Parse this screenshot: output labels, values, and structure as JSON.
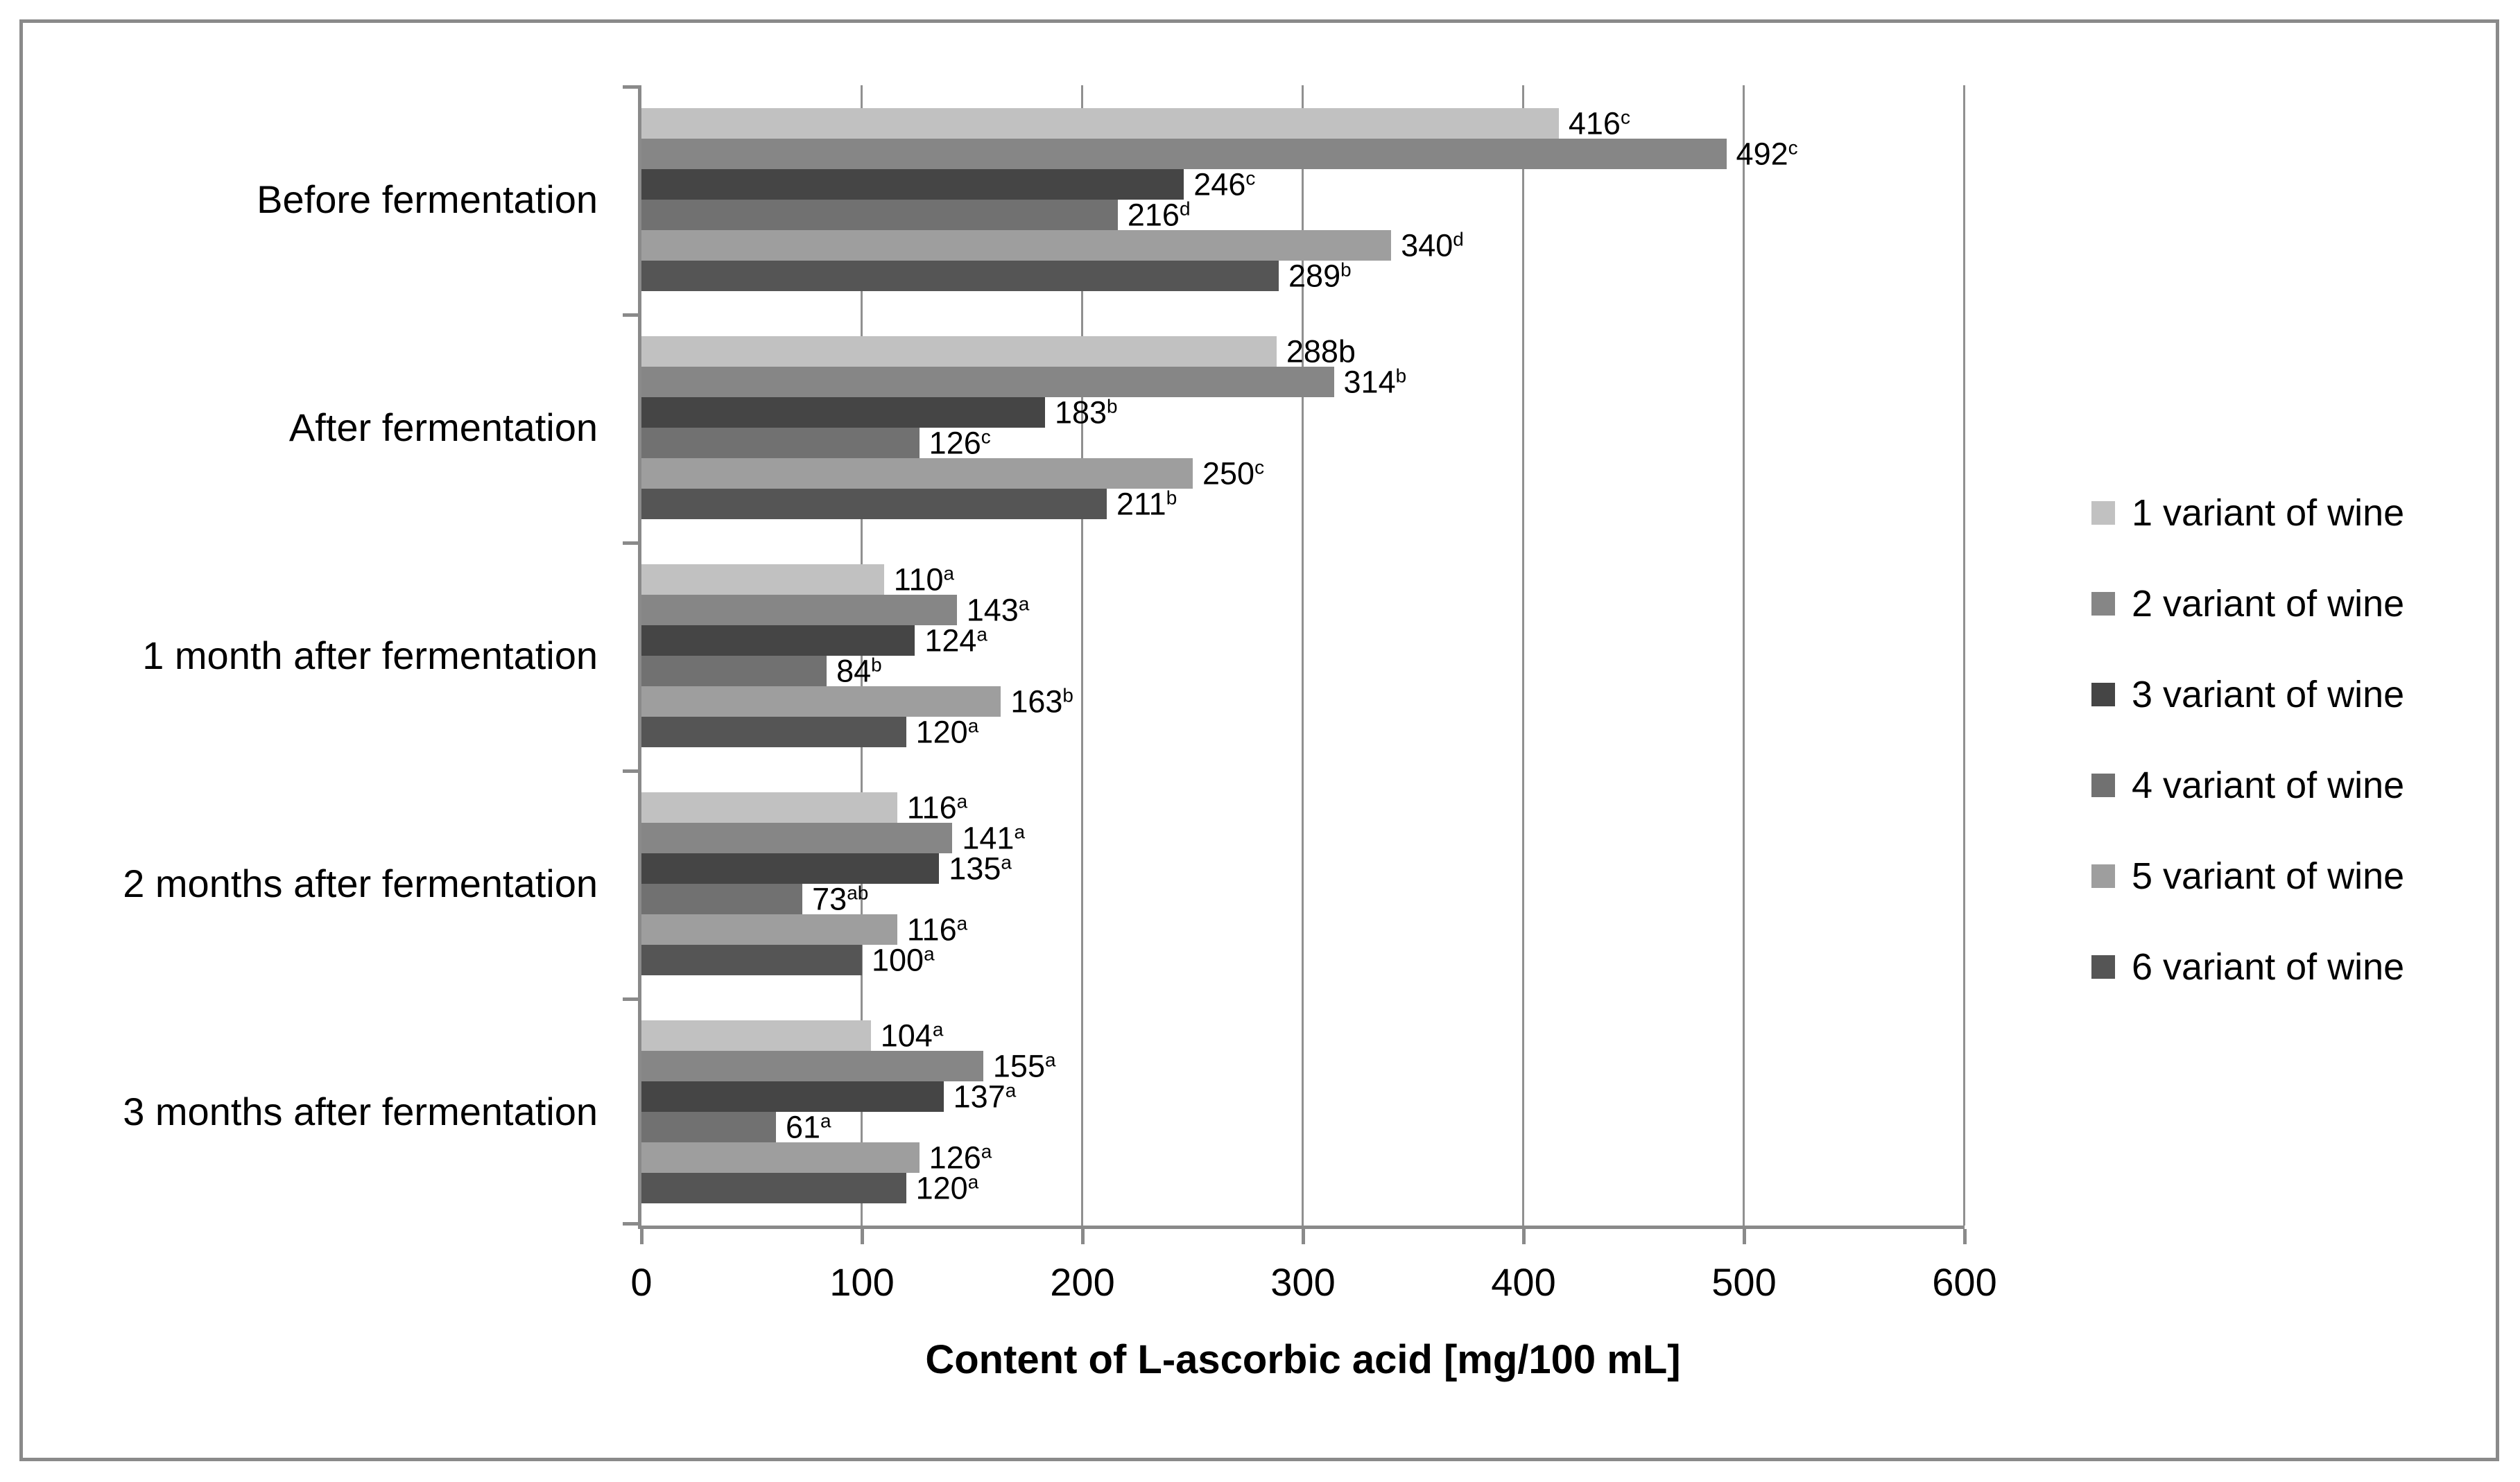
{
  "chart_data": {
    "type": "bar",
    "orientation": "horizontal",
    "title": "",
    "xlabel": "Content of L-ascorbic acid [mg/100 mL]",
    "ylabel": "",
    "xlim": [
      0,
      600
    ],
    "xticks": [
      0,
      100,
      200,
      300,
      400,
      500,
      600
    ],
    "grid": true,
    "legend_position": "right",
    "axis_color": "#8a8a8a",
    "categories": [
      "Before fermentation",
      "After fermentation",
      "1 month after fermentation",
      "2 months after fermentation",
      "3 months after fermentation"
    ],
    "series": [
      {
        "name": "1 variant of wine",
        "color": "#c1c1c1",
        "points": [
          {
            "value": 416,
            "label": "416",
            "sup": "c"
          },
          {
            "value": 288,
            "label": "288b",
            "sup": ""
          },
          {
            "value": 110,
            "label": "110",
            "sup": "a"
          },
          {
            "value": 116,
            "label": "116",
            "sup": "a"
          },
          {
            "value": 104,
            "label": "104",
            "sup": "a"
          }
        ]
      },
      {
        "name": "2 variant of wine",
        "color": "#868686",
        "points": [
          {
            "value": 492,
            "label": "492",
            "sup": "c"
          },
          {
            "value": 314,
            "label": "314",
            "sup": "b"
          },
          {
            "value": 143,
            "label": "143",
            "sup": "a"
          },
          {
            "value": 141,
            "label": "141",
            "sup": "a"
          },
          {
            "value": 155,
            "label": "155",
            "sup": "a"
          }
        ]
      },
      {
        "name": "3 variant of wine",
        "color": "#454545",
        "points": [
          {
            "value": 246,
            "label": "246",
            "sup": "c"
          },
          {
            "value": 183,
            "label": "183",
            "sup": "b"
          },
          {
            "value": 124,
            "label": "124",
            "sup": "a"
          },
          {
            "value": 135,
            "label": "135",
            "sup": "a"
          },
          {
            "value": 137,
            "label": "137",
            "sup": "a"
          }
        ]
      },
      {
        "name": "4 variant of wine",
        "color": "#717171",
        "points": [
          {
            "value": 216,
            "label": "216",
            "sup": "d"
          },
          {
            "value": 126,
            "label": "126",
            "sup": "c"
          },
          {
            "value": 84,
            "label": "84",
            "sup": "b"
          },
          {
            "value": 73,
            "label": "73",
            "sup": "ab"
          },
          {
            "value": 61,
            "label": "61",
            "sup": "a"
          }
        ]
      },
      {
        "name": "5 variant of wine",
        "color": "#9e9e9e",
        "points": [
          {
            "value": 340,
            "label": "340",
            "sup": "d"
          },
          {
            "value": 250,
            "label": "250",
            "sup": "c"
          },
          {
            "value": 163,
            "label": "163",
            "sup": "b"
          },
          {
            "value": 116,
            "label": "116",
            "sup": "a"
          },
          {
            "value": 126,
            "label": "126",
            "sup": "a"
          }
        ]
      },
      {
        "name": "6 variant of wine",
        "color": "#555555",
        "points": [
          {
            "value": 289,
            "label": "289",
            "sup": "b"
          },
          {
            "value": 211,
            "label": "211",
            "sup": "b"
          },
          {
            "value": 120,
            "label": "120",
            "sup": "a"
          },
          {
            "value": 100,
            "label": "100",
            "sup": "a"
          },
          {
            "value": 120,
            "label": "120",
            "sup": "a"
          }
        ]
      }
    ]
  }
}
